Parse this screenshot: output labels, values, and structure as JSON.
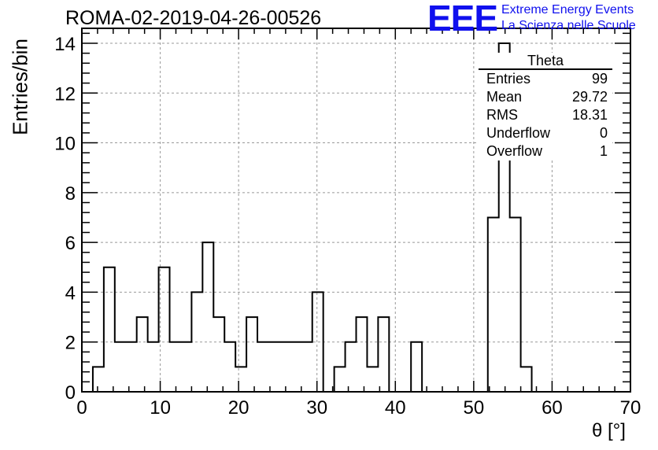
{
  "header": {
    "run_title": "ROMA-02-2019-04-26-00526",
    "logo_text": "EEE",
    "logo_line1": "Extreme Energy Events",
    "logo_line2": "La Scienza nelle Scuole",
    "logo_color": "#1010ee"
  },
  "stats": {
    "title": "Theta",
    "rows": [
      {
        "label": "Entries",
        "value": "99"
      },
      {
        "label": "Mean",
        "value": "29.72"
      },
      {
        "label": "RMS",
        "value": "18.31"
      },
      {
        "label": "Underflow",
        "value": "0"
      },
      {
        "label": "Overflow",
        "value": "1"
      }
    ]
  },
  "chart_data": {
    "type": "bar",
    "subtype": "histogram",
    "xlabel": "θ [°]",
    "ylabel": "Entries/bin",
    "xlim": [
      0,
      70
    ],
    "ylim": [
      0,
      14.6
    ],
    "xticks": [
      0,
      10,
      20,
      30,
      40,
      50,
      60,
      70
    ],
    "yticks": [
      0,
      2,
      4,
      6,
      8,
      10,
      12,
      14
    ],
    "grid": true,
    "bin_width": 1.4,
    "bin_edges_start": 0,
    "values": [
      0,
      1,
      5,
      2,
      2,
      3,
      2,
      5,
      2,
      2,
      4,
      6,
      3,
      2,
      1,
      3,
      2,
      2,
      2,
      2,
      2,
      4,
      0,
      1,
      2,
      3,
      1,
      3,
      0,
      0,
      2,
      0,
      0,
      0,
      0,
      0,
      0,
      7,
      14,
      7,
      1,
      0,
      0,
      0,
      0,
      0,
      0,
      0,
      0,
      0
    ],
    "line_color": "#000000"
  }
}
